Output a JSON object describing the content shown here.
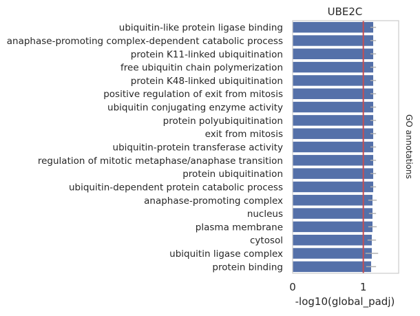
{
  "chart_data": {
    "type": "bar",
    "orientation": "horizontal",
    "title": "UBE2C",
    "xlabel": "-log10(global_padj)",
    "ylabel": "GO annotations",
    "xlim": [
      0,
      1.5
    ],
    "xticks": [
      0,
      1
    ],
    "xtick_labels": [
      "0",
      "1"
    ],
    "threshold_line": 1.0,
    "grid": true,
    "colors": {
      "bar": "#5470a9",
      "threshold": "#c44e52",
      "error_bar": "#b0b0b0",
      "frame": "#cccccc",
      "grid": "#e6e6e6"
    },
    "categories": [
      "ubiquitin-like protein ligase binding",
      "anaphase-promoting complex-dependent catabolic process",
      "protein K11-linked ubiquitination",
      "free ubiquitin chain polymerization",
      "protein K48-linked ubiquitination",
      "positive regulation of exit from mitosis",
      "ubiquitin conjugating enzyme activity",
      "protein polyubiquitination",
      "exit from mitosis",
      "ubiquitin-protein transferase activity",
      "regulation of mitotic metaphase/anaphase transition",
      "protein ubiquitination",
      "ubiquitin-dependent protein catabolic process",
      "anaphase-promoting complex",
      "nucleus",
      "plasma membrane",
      "cytosol",
      "ubiquitin ligase complex",
      "protein binding"
    ],
    "values": [
      1.14,
      1.14,
      1.14,
      1.14,
      1.14,
      1.14,
      1.14,
      1.14,
      1.14,
      1.14,
      1.14,
      1.14,
      1.14,
      1.13,
      1.13,
      1.13,
      1.12,
      1.12,
      1.11
    ],
    "error": [
      0.04,
      0.04,
      0.04,
      0.04,
      0.04,
      0.04,
      0.04,
      0.04,
      0.04,
      0.04,
      0.04,
      0.04,
      0.04,
      0.06,
      0.05,
      0.06,
      0.06,
      0.09,
      0.07
    ]
  }
}
